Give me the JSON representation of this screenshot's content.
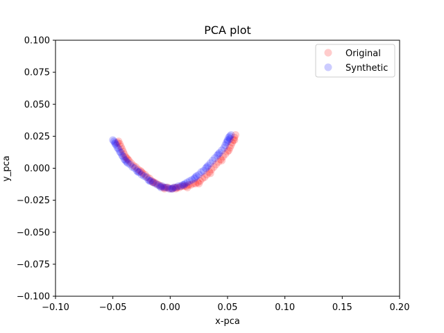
{
  "chart_data": {
    "type": "scatter",
    "title": "PCA plot",
    "xlabel": "x-pca",
    "ylabel": "y_pca",
    "xlim": [
      -0.1,
      0.2
    ],
    "ylim": [
      -0.1,
      0.1
    ],
    "xticks": [
      "−0.10",
      "−0.05",
      "0.00",
      "0.05",
      "0.10",
      "0.15",
      "0.20"
    ],
    "xtick_values": [
      -0.1,
      -0.05,
      0.0,
      0.05,
      0.1,
      0.15,
      0.2
    ],
    "yticks": [
      "−0.100",
      "−0.075",
      "−0.050",
      "−0.025",
      "0.000",
      "0.025",
      "0.050",
      "0.075",
      "0.100"
    ],
    "ytick_values": [
      -0.1,
      -0.075,
      -0.05,
      -0.025,
      0.0,
      0.025,
      0.05,
      0.075,
      0.1
    ],
    "legend_position": "top-right",
    "grid": false,
    "series": [
      {
        "name": "Original",
        "color": "#ff0000",
        "alpha": 0.2,
        "points": [
          [
            -0.045,
            0.021
          ],
          [
            -0.044,
            0.019
          ],
          [
            -0.043,
            0.017
          ],
          [
            -0.042,
            0.015
          ],
          [
            -0.041,
            0.013
          ],
          [
            -0.04,
            0.011
          ],
          [
            -0.039,
            0.009
          ],
          [
            -0.038,
            0.008
          ],
          [
            -0.036,
            0.006
          ],
          [
            -0.034,
            0.004
          ],
          [
            -0.032,
            0.002
          ],
          [
            -0.03,
            0.001
          ],
          [
            -0.028,
            -0.001
          ],
          [
            -0.026,
            -0.002
          ],
          [
            -0.024,
            -0.004
          ],
          [
            -0.022,
            -0.005
          ],
          [
            -0.02,
            -0.007
          ],
          [
            -0.018,
            -0.008
          ],
          [
            -0.016,
            -0.01
          ],
          [
            -0.014,
            -0.011
          ],
          [
            -0.012,
            -0.012
          ],
          [
            -0.01,
            -0.013
          ],
          [
            -0.008,
            -0.014
          ],
          [
            -0.006,
            -0.015
          ],
          [
            -0.004,
            -0.015
          ],
          [
            -0.002,
            -0.015
          ],
          [
            0.0,
            -0.016
          ],
          [
            0.002,
            -0.016
          ],
          [
            0.004,
            -0.015
          ],
          [
            0.006,
            -0.015
          ],
          [
            0.008,
            -0.015
          ],
          [
            0.01,
            -0.014
          ],
          [
            0.012,
            -0.014
          ],
          [
            0.014,
            -0.014
          ],
          [
            0.016,
            -0.013
          ],
          [
            0.018,
            -0.013
          ],
          [
            0.02,
            -0.012
          ],
          [
            0.022,
            -0.012
          ],
          [
            0.024,
            -0.011
          ],
          [
            0.026,
            -0.01
          ],
          [
            0.028,
            -0.008
          ],
          [
            0.03,
            -0.007
          ],
          [
            0.032,
            -0.005
          ],
          [
            0.034,
            -0.003
          ],
          [
            0.036,
            -0.001
          ],
          [
            0.038,
            0.001
          ],
          [
            0.04,
            0.003
          ],
          [
            0.042,
            0.005
          ],
          [
            0.044,
            0.007
          ],
          [
            0.046,
            0.009
          ],
          [
            0.048,
            0.011
          ],
          [
            0.05,
            0.013
          ],
          [
            0.052,
            0.016
          ],
          [
            0.053,
            0.018
          ],
          [
            0.054,
            0.02
          ],
          [
            0.055,
            0.022
          ],
          [
            0.056,
            0.024
          ],
          [
            0.057,
            0.026
          ],
          [
            -0.046,
            0.02
          ],
          [
            -0.037,
            0.007
          ],
          [
            -0.025,
            -0.003
          ],
          [
            -0.015,
            -0.011
          ],
          [
            -0.005,
            -0.016
          ],
          [
            0.005,
            -0.016
          ],
          [
            0.015,
            -0.015
          ],
          [
            0.025,
            -0.012
          ],
          [
            0.035,
            -0.004
          ],
          [
            0.045,
            0.006
          ],
          [
            0.051,
            0.014
          ],
          [
            0.056,
            0.022
          ]
        ]
      },
      {
        "name": "Synthetic",
        "color": "#0000ff",
        "alpha": 0.2,
        "points": [
          [
            -0.05,
            0.022
          ],
          [
            -0.049,
            0.021
          ],
          [
            -0.048,
            0.019
          ],
          [
            -0.047,
            0.018
          ],
          [
            -0.046,
            0.016
          ],
          [
            -0.045,
            0.015
          ],
          [
            -0.044,
            0.013
          ],
          [
            -0.043,
            0.012
          ],
          [
            -0.042,
            0.01
          ],
          [
            -0.041,
            0.009
          ],
          [
            -0.04,
            0.007
          ],
          [
            -0.039,
            0.006
          ],
          [
            -0.037,
            0.004
          ],
          [
            -0.035,
            0.003
          ],
          [
            -0.033,
            0.001
          ],
          [
            -0.031,
            0.0
          ],
          [
            -0.029,
            -0.002
          ],
          [
            -0.027,
            -0.003
          ],
          [
            -0.025,
            -0.005
          ],
          [
            -0.023,
            -0.006
          ],
          [
            -0.021,
            -0.007
          ],
          [
            -0.019,
            -0.009
          ],
          [
            -0.017,
            -0.01
          ],
          [
            -0.015,
            -0.011
          ],
          [
            -0.013,
            -0.012
          ],
          [
            -0.011,
            -0.013
          ],
          [
            -0.009,
            -0.014
          ],
          [
            -0.007,
            -0.014
          ],
          [
            -0.005,
            -0.015
          ],
          [
            -0.003,
            -0.015
          ],
          [
            -0.001,
            -0.016
          ],
          [
            0.001,
            -0.016
          ],
          [
            0.003,
            -0.015
          ],
          [
            0.005,
            -0.015
          ],
          [
            0.007,
            -0.014
          ],
          [
            0.009,
            -0.014
          ],
          [
            0.011,
            -0.013
          ],
          [
            0.013,
            -0.012
          ],
          [
            0.015,
            -0.011
          ],
          [
            0.017,
            -0.01
          ],
          [
            0.019,
            -0.009
          ],
          [
            0.021,
            -0.008
          ],
          [
            0.023,
            -0.006
          ],
          [
            0.025,
            -0.005
          ],
          [
            0.027,
            -0.003
          ],
          [
            0.029,
            -0.002
          ],
          [
            0.031,
            0.0
          ],
          [
            0.033,
            0.002
          ],
          [
            0.035,
            0.004
          ],
          [
            0.037,
            0.006
          ],
          [
            0.039,
            0.008
          ],
          [
            0.041,
            0.01
          ],
          [
            0.043,
            0.012
          ],
          [
            0.045,
            0.014
          ],
          [
            0.047,
            0.016
          ],
          [
            0.048,
            0.018
          ],
          [
            0.049,
            0.02
          ],
          [
            0.05,
            0.022
          ],
          [
            0.051,
            0.024
          ],
          [
            0.052,
            0.025
          ],
          [
            0.053,
            0.026
          ],
          [
            -0.048,
            0.02
          ],
          [
            -0.038,
            0.005
          ],
          [
            -0.028,
            -0.003
          ],
          [
            -0.018,
            -0.01
          ],
          [
            -0.008,
            -0.015
          ],
          [
            0.002,
            -0.016
          ],
          [
            0.012,
            -0.013
          ],
          [
            0.022,
            -0.007
          ],
          [
            0.032,
            0.001
          ],
          [
            0.042,
            0.011
          ],
          [
            0.05,
            0.021
          ],
          [
            0.052,
            0.023
          ]
        ]
      }
    ]
  }
}
